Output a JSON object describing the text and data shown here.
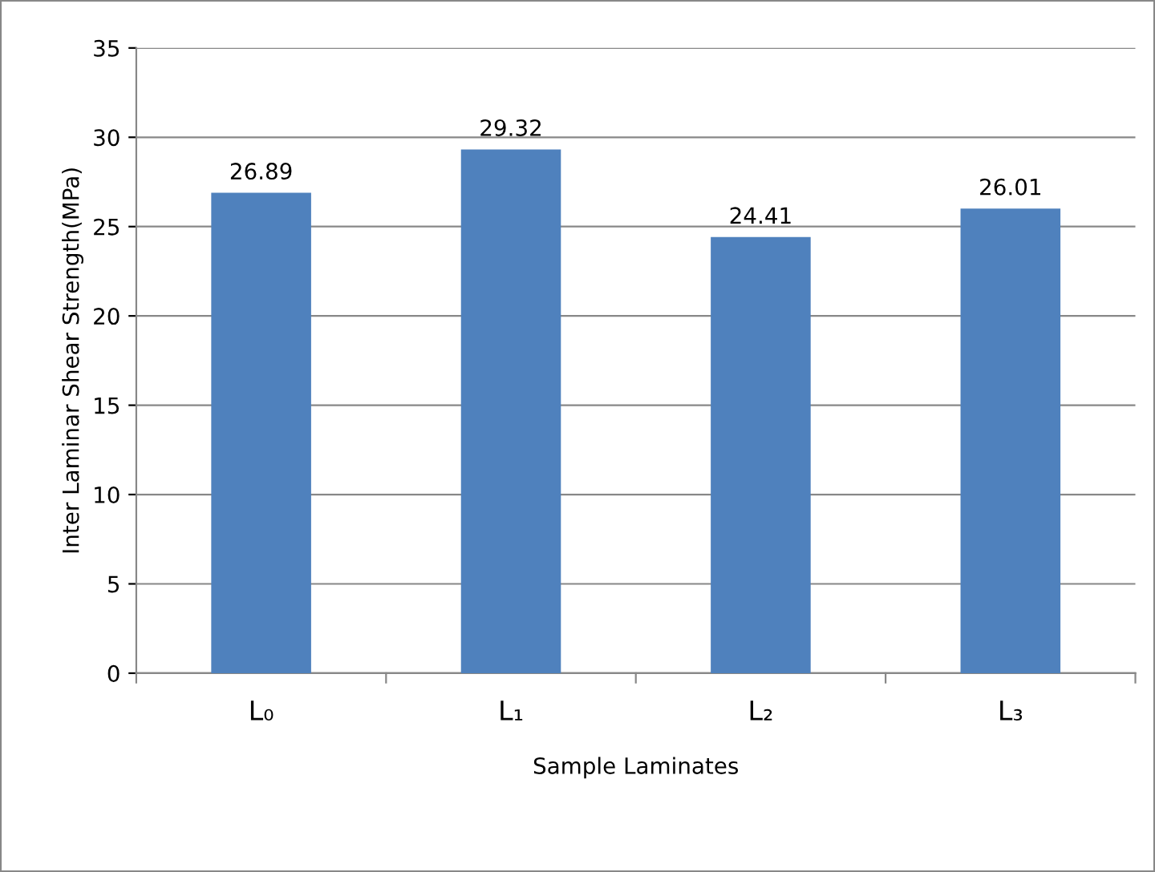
{
  "chart_data": {
    "type": "bar",
    "categories": [
      "L₀",
      "L₁",
      "L₂",
      "L₃"
    ],
    "values": [
      26.89,
      29.32,
      24.41,
      26.01
    ],
    "color": "#4f81bd",
    "xlabel": "Sample Laminates",
    "ylabel": "Inter Laminar Shear Strength(MPa)",
    "ylim": [
      0,
      35
    ],
    "yticks": [
      0,
      5,
      10,
      15,
      20,
      25,
      30,
      35
    ],
    "grid": "y",
    "data_labels": true,
    "legend": false
  }
}
